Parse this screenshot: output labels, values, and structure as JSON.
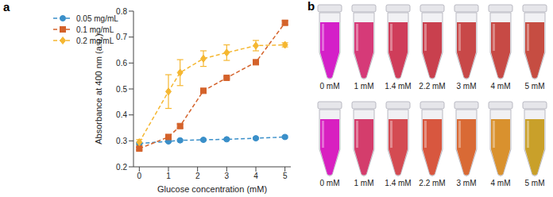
{
  "chart_data": {
    "type": "line",
    "panel_label": "a",
    "x_label": "Glucose concentration (mM)",
    "y_label": "Absorbance at 400 nm (a.u.)",
    "x": [
      0,
      1,
      1.4,
      2.2,
      3,
      4,
      5
    ],
    "xlim": [
      -0.2,
      5.2
    ],
    "xticks": [
      0,
      1,
      2,
      3,
      4,
      5
    ],
    "ylim": [
      0.2,
      0.8
    ],
    "yticks": [
      0.2,
      0.3,
      0.4,
      0.5,
      0.6,
      0.7,
      0.8
    ],
    "grid": false,
    "legend": "upper left",
    "series": [
      {
        "name": "0.05 mg/mL",
        "color": "#3a8fc9",
        "marker": "circle",
        "line_style": "dashed",
        "values": [
          0.29,
          0.298,
          0.302,
          0.304,
          0.306,
          0.31,
          0.315
        ],
        "errors": [
          0.004,
          0.003,
          0.003,
          0.003,
          0.003,
          0.003,
          0.004
        ]
      },
      {
        "name": "0.1 mg/mL",
        "color": "#d4622a",
        "marker": "square",
        "line_style": "dashed",
        "values": [
          0.27,
          0.315,
          0.357,
          0.493,
          0.543,
          0.603,
          0.755
        ],
        "errors": [
          0.005,
          0.008,
          0.008,
          0.004,
          0.004,
          0.006,
          0.008
        ]
      },
      {
        "name": "0.2 mg/mL",
        "color": "#f5b731",
        "marker": "diamond",
        "line_style": "dashed",
        "values": [
          0.295,
          0.49,
          0.563,
          0.617,
          0.64,
          0.667,
          0.67
        ],
        "errors": [
          0.01,
          0.065,
          0.05,
          0.03,
          0.03,
          0.02,
          0.008
        ]
      }
    ]
  },
  "photo": {
    "panel_label": "b",
    "rows": [
      {
        "labels": [
          "0 mM",
          "1 mM",
          "1.4 mM",
          "2.2 mM",
          "3 mM",
          "4 mM",
          "5 mM"
        ],
        "colors": [
          "#d420c8",
          "#d63a78",
          "#cf3d5a",
          "#c9404e",
          "#c84848",
          "#c74a45",
          "#c64d42"
        ]
      },
      {
        "labels": [
          "0 mM",
          "1 mM",
          "1.4 mM",
          "2.2 mM",
          "3 mM",
          "4 mM",
          "5 mM"
        ],
        "colors": [
          "#d820c0",
          "#d43d6c",
          "#d44b52",
          "#d8573f",
          "#d96a35",
          "#d9912e",
          "#c9a02a"
        ]
      }
    ]
  }
}
